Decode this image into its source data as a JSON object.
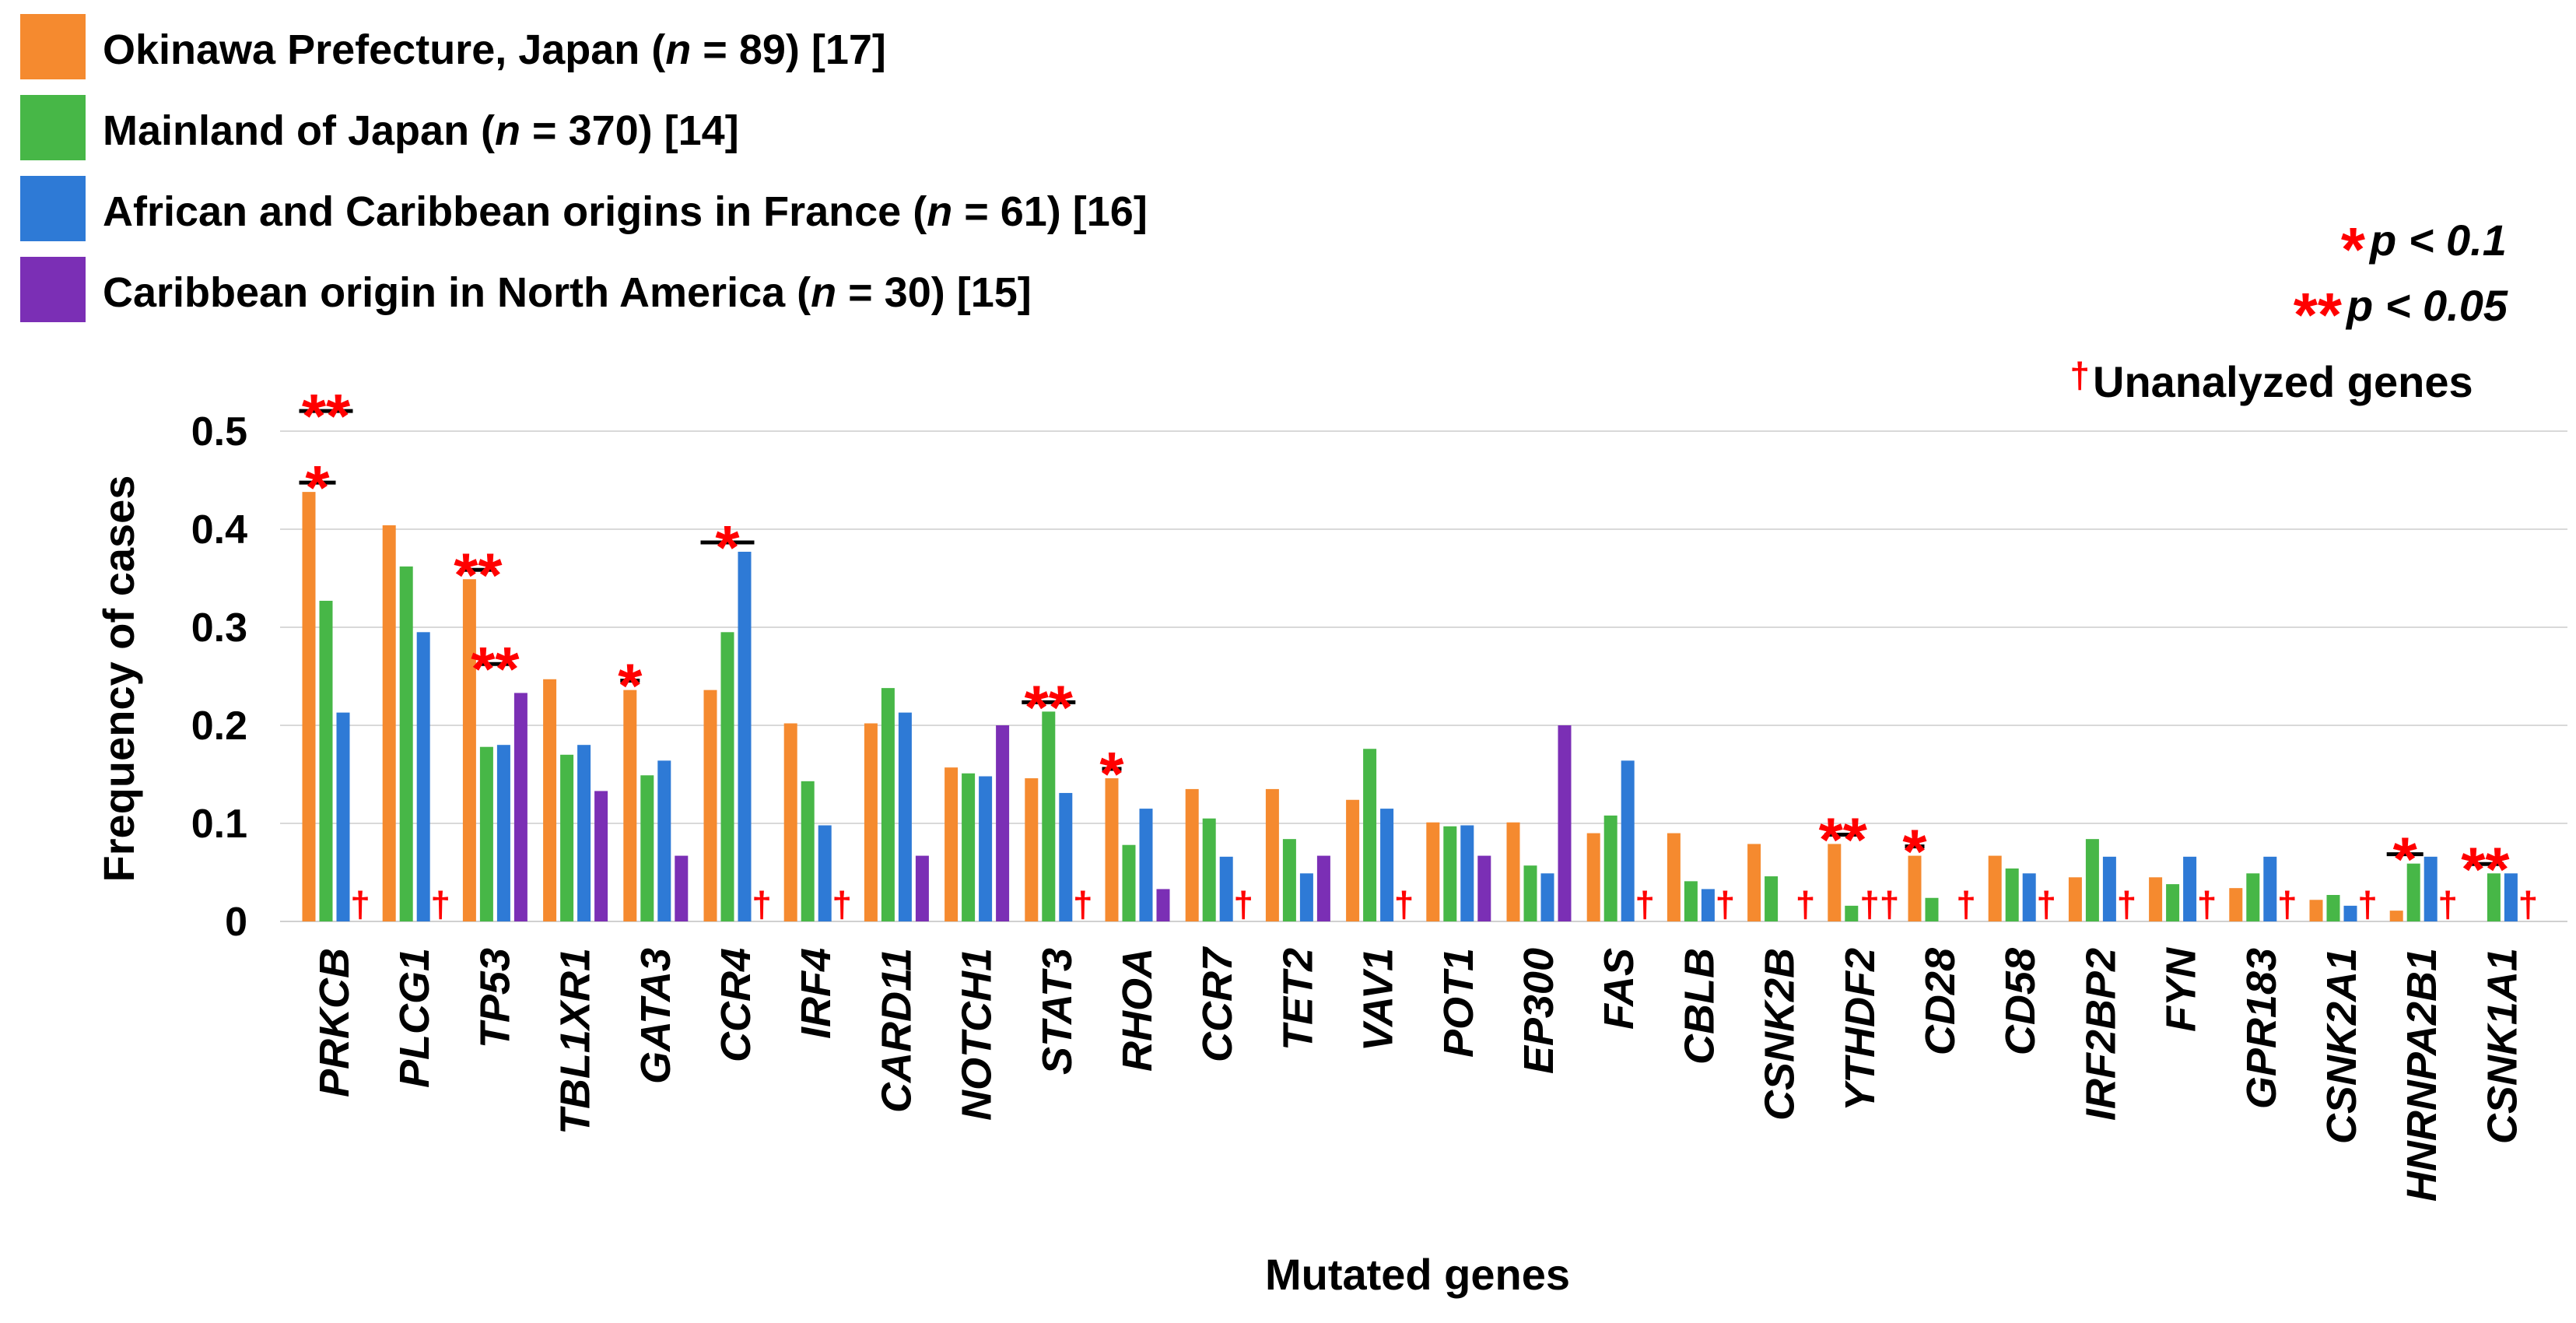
{
  "chart_data": {
    "type": "bar",
    "xlabel": "Mutated genes",
    "ylabel": "Frequency of cases",
    "ylim": [
      0,
      0.5
    ],
    "yticks": [
      "0",
      "0.1",
      "0.2",
      "0.3",
      "0.4",
      "0.5"
    ],
    "categories": [
      "PRKCB",
      "PLCG1",
      "TP53",
      "TBL1XR1",
      "GATA3",
      "CCR4",
      "IRF4",
      "CARD11",
      "NOTCH1",
      "STAT3",
      "RHOA",
      "CCR7",
      "TET2",
      "VAV1",
      "POT1",
      "EP300",
      "FAS",
      "CBLB",
      "CSNK2B",
      "YTHDF2",
      "CD28",
      "CD58",
      "IRF2BP2",
      "FYN",
      "GPR183",
      "CSNK2A1",
      "HNRNPA2B1",
      "CSNK1A1"
    ],
    "series": [
      {
        "name_prefix": "Okinawa Prefecture, Japan (",
        "n": "n",
        "name_suffix": " = 89) [17]",
        "color": "#f58a2f",
        "values": [
          0.438,
          0.404,
          0.349,
          0.247,
          0.236,
          0.236,
          0.202,
          0.202,
          0.157,
          0.146,
          0.146,
          0.135,
          0.135,
          0.124,
          0.101,
          0.101,
          0.09,
          0.09,
          0.079,
          0.079,
          0.067,
          0.067,
          0.045,
          0.045,
          0.034,
          0.022,
          0.011,
          0.0
        ]
      },
      {
        "name_prefix": "Mainland of Japan (",
        "n": "n",
        "name_suffix": " = 370) [14]",
        "color": "#47b747",
        "values": [
          0.327,
          0.362,
          0.178,
          0.17,
          0.149,
          0.295,
          0.143,
          0.238,
          0.151,
          0.214,
          0.078,
          0.105,
          0.084,
          0.176,
          0.097,
          0.057,
          0.108,
          0.041,
          0.046,
          0.016,
          0.024,
          0.054,
          0.084,
          0.038,
          0.049,
          0.027,
          0.059,
          0.049
        ]
      },
      {
        "name_prefix": "African and Caribbean origins in France (",
        "n": "n",
        "name_suffix": " = 61) [16]",
        "color": "#2e7ad6",
        "values": [
          0.213,
          0.295,
          0.18,
          0.18,
          0.164,
          0.377,
          0.098,
          0.213,
          0.148,
          0.131,
          0.115,
          0.066,
          0.049,
          0.115,
          0.098,
          0.049,
          0.164,
          0.033,
          0.0,
          0.0,
          0.0,
          0.049,
          0.066,
          0.066,
          0.066,
          0.016,
          0.066,
          0.049
        ]
      },
      {
        "name_prefix": "Caribbean origin in North America (",
        "n": "n",
        "name_suffix": " = 30) [15]",
        "color": "#7b2fb5",
        "values": [
          null,
          null,
          0.233,
          0.133,
          0.067,
          null,
          null,
          0.067,
          0.2,
          null,
          0.033,
          null,
          0.067,
          null,
          0.067,
          0.2,
          null,
          null,
          null,
          null,
          null,
          null,
          null,
          null,
          null,
          null,
          null,
          null
        ]
      }
    ],
    "unanalyzed_mark": "†",
    "unanalyzed_marks": [
      {
        "gene": "PRKCB",
        "text": "†"
      },
      {
        "gene": "PLCG1",
        "text": "†"
      },
      {
        "gene": "CCR4",
        "text": "†"
      },
      {
        "gene": "IRF4",
        "text": "†"
      },
      {
        "gene": "STAT3",
        "text": "†"
      },
      {
        "gene": "CCR7",
        "text": "†"
      },
      {
        "gene": "VAV1",
        "text": "†"
      },
      {
        "gene": "FAS",
        "text": "†"
      },
      {
        "gene": "CBLB",
        "text": "†"
      },
      {
        "gene": "CSNK2B",
        "text": "†"
      },
      {
        "gene": "YTHDF2",
        "text": "††"
      },
      {
        "gene": "CD28",
        "text": "†"
      },
      {
        "gene": "CD58",
        "text": "†"
      },
      {
        "gene": "IRF2BP2",
        "text": "†"
      },
      {
        "gene": "FYN",
        "text": "†"
      },
      {
        "gene": "GPR183",
        "text": "†"
      },
      {
        "gene": "CSNK2A1",
        "text": "†"
      },
      {
        "gene": "HNRNPA2B1",
        "text": "†"
      },
      {
        "gene": "CSNK1A1",
        "text": "†"
      }
    ],
    "significance": [
      {
        "gene": "PRKCB",
        "stars": "*",
        "from_series": 0,
        "to_series": 1,
        "level": 0
      },
      {
        "gene": "PRKCB",
        "stars": "**",
        "from_series": 0,
        "to_series": 2,
        "level": 1
      },
      {
        "gene": "TP53",
        "stars": "**",
        "from_series": 0,
        "to_series": 1,
        "level": 0
      },
      {
        "gene": "TP53",
        "stars": "**",
        "from_series": 1,
        "to_series": 2,
        "level": 1
      },
      {
        "gene": "GATA3",
        "stars": "*",
        "from_series": 0,
        "to_series": 0,
        "level": 0
      },
      {
        "gene": "CCR4",
        "stars": "*",
        "from_series": 0,
        "to_series": 2,
        "level": 0
      },
      {
        "gene": "STAT3",
        "stars": "**",
        "from_series": 0,
        "to_series": 2,
        "level": 0
      },
      {
        "gene": "RHOA",
        "stars": "*",
        "from_series": 0,
        "to_series": 0,
        "level": 0
      },
      {
        "gene": "YTHDF2",
        "stars": "**",
        "from_series": 0,
        "to_series": 1,
        "level": 0
      },
      {
        "gene": "CD28",
        "stars": "*",
        "from_series": 0,
        "to_series": 0,
        "level": 0
      },
      {
        "gene": "HNRNPA2B1",
        "stars": "*",
        "from_series": 0,
        "to_series": 1,
        "level": 0
      },
      {
        "gene": "CSNK1A1",
        "stars": "**",
        "from_series": 0,
        "to_series": 1,
        "level": 0
      }
    ],
    "significance_key": [
      {
        "stars": "*",
        "text": "p < 0.1"
      },
      {
        "stars": "**",
        "text": "p < 0.05"
      },
      {
        "stars": "†",
        "text": "Unanalyzed genes"
      }
    ],
    "legend_position": "top-left"
  }
}
